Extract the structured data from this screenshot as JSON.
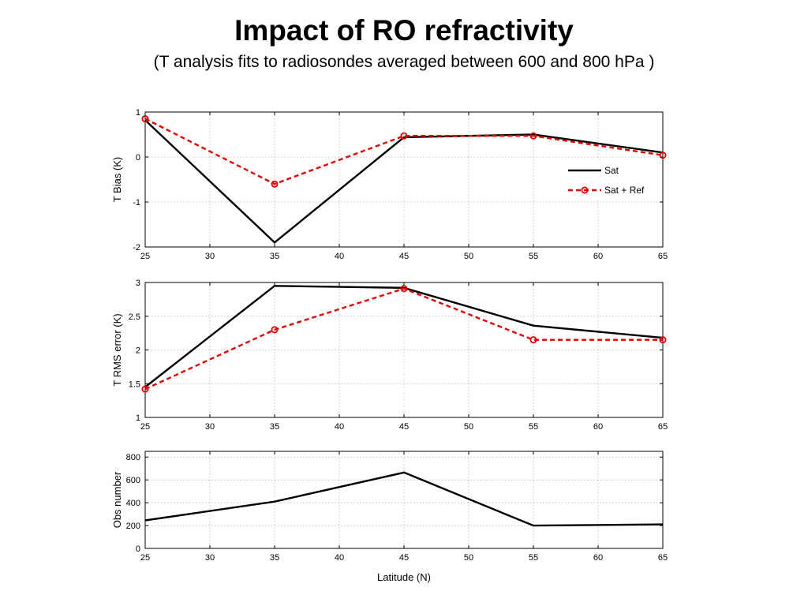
{
  "title": "Impact of RO refractivity",
  "subtitle": "(T analysis fits to radiosondes averaged between 600 and 800 hPa )",
  "chart_data": [
    {
      "type": "line",
      "ylabel": "T Bias (K)",
      "xlabel": "",
      "x": [
        25,
        35,
        45,
        55,
        65
      ],
      "xlim": [
        25,
        65
      ],
      "ylim": [
        -2,
        1
      ],
      "xticks": [
        "25",
        "30",
        "35",
        "40",
        "45",
        "50",
        "55",
        "60",
        "65"
      ],
      "yticks": [
        "-2",
        "-1",
        "0",
        "1"
      ],
      "grid": true,
      "legend_position": "right",
      "series": [
        {
          "name": "Sat",
          "color": "#000000",
          "style": "solid",
          "marker": "none",
          "values": [
            0.82,
            -1.9,
            0.44,
            0.5,
            0.1
          ]
        },
        {
          "name": "Sat + Ref",
          "color": "#e00000",
          "style": "dashed",
          "marker": "circle",
          "values": [
            0.85,
            -0.6,
            0.47,
            0.47,
            0.04
          ]
        }
      ]
    },
    {
      "type": "line",
      "ylabel": "T RMS error (K)",
      "xlabel": "",
      "x": [
        25,
        35,
        45,
        55,
        65
      ],
      "xlim": [
        25,
        65
      ],
      "ylim": [
        1,
        3
      ],
      "xticks": [
        "25",
        "30",
        "35",
        "40",
        "45",
        "50",
        "55",
        "60",
        "65"
      ],
      "yticks": [
        "1",
        "1.5",
        "2",
        "2.5",
        "3"
      ],
      "grid": true,
      "series": [
        {
          "name": "Sat",
          "color": "#000000",
          "style": "solid",
          "marker": "none",
          "values": [
            1.45,
            2.95,
            2.92,
            2.36,
            2.18
          ]
        },
        {
          "name": "Sat + Ref",
          "color": "#e00000",
          "style": "dashed",
          "marker": "circle",
          "values": [
            1.42,
            2.3,
            2.91,
            2.15,
            2.15
          ]
        }
      ]
    },
    {
      "type": "line",
      "ylabel": "Obs number",
      "xlabel": "Latitude (N)",
      "x": [
        25,
        35,
        45,
        55,
        65
      ],
      "xlim": [
        25,
        65
      ],
      "ylim": [
        0,
        850
      ],
      "xticks": [
        "25",
        "30",
        "35",
        "40",
        "45",
        "50",
        "55",
        "60",
        "65"
      ],
      "yticks": [
        "0",
        "200",
        "400",
        "600",
        "800"
      ],
      "grid": true,
      "series": [
        {
          "color": "#000000",
          "style": "solid",
          "marker": "none",
          "values": [
            245,
            410,
            665,
            200,
            210
          ]
        }
      ]
    }
  ]
}
